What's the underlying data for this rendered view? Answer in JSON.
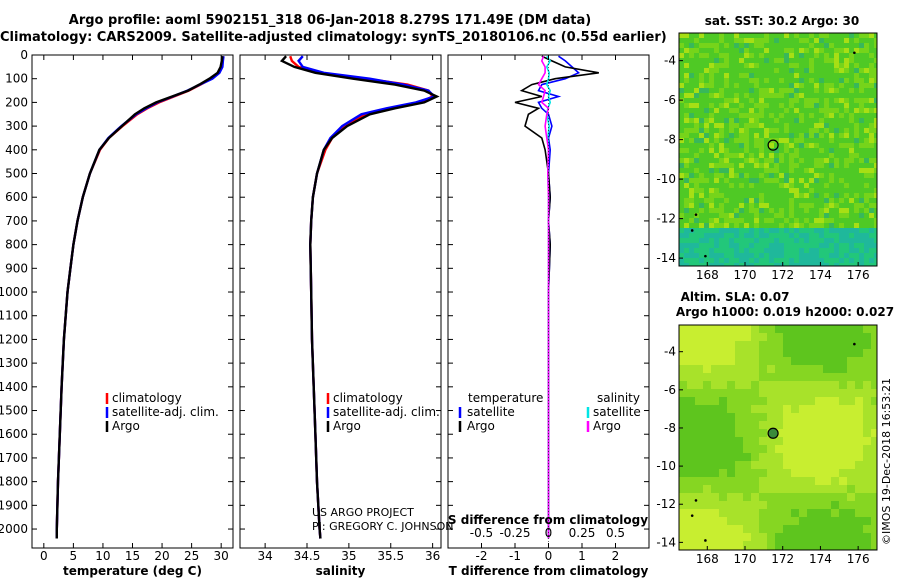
{
  "header": {
    "line1": "Argo profile: aoml 5902151_318 06-Jan-2018 8.279S 171.49E (DM data)",
    "line2": "Climatology: CARS2009. Satellite-adjusted climatology: synTS_20180106.nc (0.55d earlier)"
  },
  "credit": {
    "line1": "US ARGO PROJECT",
    "line2": "PI: GREGORY C. JOHNSON"
  },
  "stamp": "©IMOS 19-Dec-2018 16:53:21",
  "colors": {
    "climatology": "#ff0000",
    "satellite": "#0000ff",
    "argo": "#000000",
    "sat_salinity": "#00e5e5",
    "argo_salinity": "#ff00ff"
  },
  "chart_data": [
    {
      "type": "line",
      "panel": "temperature",
      "xlabel": "temperature (deg C)",
      "xlim": [
        -2,
        32
      ],
      "xticks": [
        "0",
        "5",
        "10",
        "15",
        "20",
        "25",
        "30"
      ],
      "xtick_values": [
        0,
        5,
        10,
        15,
        20,
        25,
        30
      ],
      "ylabel": "",
      "ylim": [
        0,
        2080
      ],
      "yticks": [
        "0",
        "100",
        "200",
        "300",
        "400",
        "500",
        "600",
        "700",
        "800",
        "900",
        "1000",
        "1100",
        "1200",
        "1300",
        "1400",
        "1500",
        "1600",
        "1700",
        "1800",
        "1900",
        "2000"
      ],
      "ytick_values": [
        0,
        100,
        200,
        300,
        400,
        500,
        600,
        700,
        800,
        900,
        1000,
        1100,
        1200,
        1300,
        1400,
        1500,
        1600,
        1700,
        1800,
        1900,
        2000
      ],
      "legend": [
        "climatology",
        "satellite-adj. clim.",
        "Argo"
      ],
      "series": [
        {
          "name": "climatology",
          "color": "#ff0000",
          "depth": [
            5,
            25,
            50,
            75,
            100,
            125,
            150,
            175,
            200,
            225,
            250,
            300,
            350,
            400,
            500,
            600,
            700,
            800,
            900,
            1000,
            1200,
            1400,
            1600,
            1800,
            2000,
            2040
          ],
          "values": [
            30.3,
            30.2,
            30.0,
            29.5,
            28.3,
            26.5,
            24.5,
            22.0,
            19.5,
            17.5,
            15.8,
            13.3,
            11.0,
            9.5,
            7.8,
            6.6,
            5.7,
            5.0,
            4.5,
            4.0,
            3.4,
            3.0,
            2.7,
            2.4,
            2.2,
            2.2
          ]
        },
        {
          "name": "satellite-adj. clim.",
          "color": "#0000ff",
          "depth": [
            5,
            25,
            50,
            75,
            100,
            125,
            150,
            175,
            200,
            225,
            250,
            300,
            350,
            400,
            500,
            600,
            700,
            800,
            900,
            1000,
            1200,
            1400,
            1600,
            1800,
            2000,
            2040
          ],
          "values": [
            30.4,
            30.3,
            30.2,
            29.7,
            28.5,
            26.4,
            24.3,
            21.8,
            19.2,
            17.3,
            15.6,
            13.1,
            10.9,
            9.4,
            7.8,
            6.6,
            5.7,
            5.0,
            4.5,
            4.0,
            3.4,
            3.0,
            2.7,
            2.4,
            2.2,
            2.2
          ]
        },
        {
          "name": "Argo",
          "color": "#000000",
          "depth": [
            5,
            25,
            50,
            75,
            100,
            125,
            150,
            175,
            200,
            225,
            250,
            300,
            350,
            400,
            500,
            600,
            700,
            800,
            900,
            1000,
            1200,
            1400,
            1600,
            1800,
            2000,
            2040
          ],
          "values": [
            30.2,
            30.1,
            29.9,
            29.4,
            28.0,
            26.3,
            24.4,
            21.7,
            19.0,
            17.0,
            15.4,
            13.2,
            11.0,
            9.4,
            7.8,
            6.6,
            5.7,
            5.0,
            4.5,
            4.0,
            3.4,
            3.0,
            2.7,
            2.4,
            2.2,
            2.2
          ]
        }
      ]
    },
    {
      "type": "line",
      "panel": "salinity",
      "xlabel": "salinity",
      "xlim": [
        33.7,
        36.1
      ],
      "xticks": [
        "34",
        "34.5",
        "35",
        "35.5",
        "36"
      ],
      "xtick_values": [
        34,
        34.5,
        35,
        35.5,
        36
      ],
      "ylim": [
        0,
        2080
      ],
      "legend": [
        "climatology",
        "satellite-adj. clim.",
        "Argo"
      ],
      "credit_lines": [
        "US ARGO PROJECT",
        "PI: GREGORY C. JOHNSON"
      ],
      "series": [
        {
          "name": "climatology",
          "color": "#ff0000",
          "depth": [
            5,
            25,
            50,
            75,
            100,
            125,
            150,
            175,
            200,
            225,
            250,
            300,
            350,
            400,
            500,
            600,
            700,
            800,
            1000,
            1200,
            1400,
            1600,
            1800,
            2000,
            2040
          ],
          "values": [
            34.3,
            34.32,
            34.4,
            34.65,
            35.2,
            35.7,
            35.95,
            36.0,
            35.85,
            35.5,
            35.2,
            34.95,
            34.8,
            34.72,
            34.62,
            34.57,
            34.55,
            34.54,
            34.55,
            34.56,
            34.58,
            34.6,
            34.62,
            34.65,
            34.66
          ]
        },
        {
          "name": "satellite-adj. clim.",
          "color": "#0000ff",
          "depth": [
            5,
            25,
            50,
            75,
            100,
            125,
            150,
            175,
            200,
            225,
            250,
            300,
            350,
            400,
            500,
            600,
            700,
            800,
            1000,
            1200,
            1400,
            1600,
            1800,
            2000,
            2040
          ],
          "values": [
            34.45,
            34.4,
            34.45,
            34.7,
            35.25,
            35.65,
            35.95,
            36.02,
            35.8,
            35.45,
            35.15,
            34.92,
            34.78,
            34.7,
            34.62,
            34.57,
            34.55,
            34.54,
            34.55,
            34.56,
            34.58,
            34.6,
            34.62,
            34.65,
            34.66
          ]
        },
        {
          "name": "Argo",
          "color": "#000000",
          "depth": [
            5,
            25,
            50,
            75,
            100,
            125,
            150,
            175,
            200,
            225,
            250,
            300,
            350,
            400,
            500,
            600,
            700,
            800,
            1000,
            1200,
            1400,
            1600,
            1800,
            2000,
            2040
          ],
          "values": [
            34.25,
            34.2,
            34.35,
            34.6,
            35.05,
            35.55,
            35.9,
            36.05,
            35.9,
            35.55,
            35.25,
            34.98,
            34.8,
            34.7,
            34.62,
            34.57,
            34.55,
            34.54,
            34.55,
            34.56,
            34.58,
            34.6,
            34.62,
            34.65,
            34.66
          ]
        }
      ]
    },
    {
      "type": "line",
      "panel": "difference",
      "xlabel": "T difference from climatology",
      "xlabel_top": "S difference from climatology",
      "xlim": [
        -3,
        3
      ],
      "xticks": [
        "-2",
        "-1",
        "0",
        "1",
        "2"
      ],
      "xtick_values": [
        -2,
        -1,
        0,
        1,
        2
      ],
      "xticks_top": [
        "-0.5",
        "-0.25",
        "0",
        "0.25",
        "0.5"
      ],
      "xtick_top_values": [
        -0.5,
        -0.25,
        0,
        0.25,
        0.5
      ],
      "ylim": [
        0,
        2080
      ],
      "legend_left_title": "temperature",
      "legend_right_title": "salinity",
      "legend": [
        "satellite",
        "Argo",
        "satellite",
        "Argo"
      ],
      "series": [
        {
          "name": "satellite",
          "group": "temperature",
          "color": "#0000ff",
          "depth": [
            5,
            25,
            50,
            75,
            100,
            125,
            150,
            175,
            200,
            225,
            250,
            300,
            350,
            400,
            500,
            600,
            700,
            800,
            1000,
            1500,
            2040
          ],
          "values": [
            0.3,
            0.5,
            0.7,
            0.9,
            0.5,
            -0.2,
            -0.3,
            0.3,
            -0.3,
            -0.2,
            0.0,
            0.1,
            0.0,
            0.05,
            0.0,
            0.05,
            0.0,
            0.05,
            0.0,
            0.0,
            0.0
          ]
        },
        {
          "name": "Argo",
          "group": "temperature",
          "color": "#000000",
          "depth": [
            5,
            25,
            50,
            75,
            100,
            125,
            150,
            175,
            200,
            225,
            250,
            300,
            350,
            400,
            500,
            600,
            700,
            800,
            1000,
            1500,
            2040
          ],
          "values": [
            -0.2,
            0.1,
            0.5,
            1.5,
            0.2,
            -0.5,
            -0.8,
            -0.2,
            -1.0,
            -0.3,
            -0.6,
            -0.7,
            -0.2,
            -0.1,
            0.0,
            0.05,
            0.0,
            0.05,
            0.0,
            0.0,
            0.0
          ]
        },
        {
          "name": "satellite",
          "group": "salinity",
          "color": "#00e5e5",
          "depth": [
            5,
            25,
            50,
            75,
            100,
            125,
            150,
            175,
            200,
            225,
            250,
            300,
            350,
            400,
            500,
            600,
            800,
            1000,
            1500,
            2040
          ],
          "values": [
            -0.05,
            0.05,
            -0.05,
            0.02,
            0.0,
            -0.05,
            0.05,
            0.0,
            0.05,
            -0.02,
            -0.05,
            0.02,
            -0.02,
            0.0,
            -0.02,
            0.0,
            0.0,
            0.0,
            0.0,
            0.0
          ]
        },
        {
          "name": "Argo",
          "group": "salinity",
          "color": "#ff00ff",
          "depth": [
            5,
            25,
            50,
            75,
            100,
            125,
            150,
            175,
            200,
            225,
            250,
            300,
            350,
            400,
            500,
            600,
            800,
            1000,
            1500,
            2040
          ],
          "values": [
            -0.15,
            -0.2,
            -0.1,
            -0.1,
            -0.2,
            -0.3,
            -0.1,
            -0.15,
            -0.2,
            0.0,
            -0.05,
            -0.1,
            -0.05,
            0.0,
            -0.02,
            0.0,
            0.0,
            0.0,
            0.0,
            0.0
          ]
        }
      ]
    },
    {
      "type": "heatmap",
      "panel": "sst_map",
      "title": "sat. SST: 30.2 Argo: 30",
      "xlim": [
        166.5,
        177
      ],
      "ylim": [
        -14.4,
        -2.6
      ],
      "xticks": [
        "168",
        "170",
        "172",
        "174",
        "176"
      ],
      "xtick_values": [
        168,
        170,
        172,
        174,
        176
      ],
      "yticks": [
        "-4",
        "-6",
        "-8",
        "-10",
        "-12",
        "-14"
      ],
      "ytick_values": [
        -4,
        -6,
        -8,
        -10,
        -12,
        -14
      ],
      "float_position": [
        171.49,
        -8.279
      ]
    },
    {
      "type": "heatmap",
      "panel": "sla_map",
      "title_lines": [
        "Altim. SLA: 0.07",
        "Argo h1000: 0.019 h2000: 0.027"
      ],
      "xlim": [
        166.5,
        177
      ],
      "ylim": [
        -14.4,
        -2.6
      ],
      "xticks": [
        "168",
        "170",
        "172",
        "174",
        "176"
      ],
      "xtick_values": [
        168,
        170,
        172,
        174,
        176
      ],
      "yticks": [
        "-4",
        "-6",
        "-8",
        "-10",
        "-12",
        "-14"
      ],
      "ytick_values": [
        -4,
        -6,
        -8,
        -10,
        -12,
        -14
      ],
      "float_position": [
        171.49,
        -8.279
      ]
    }
  ]
}
